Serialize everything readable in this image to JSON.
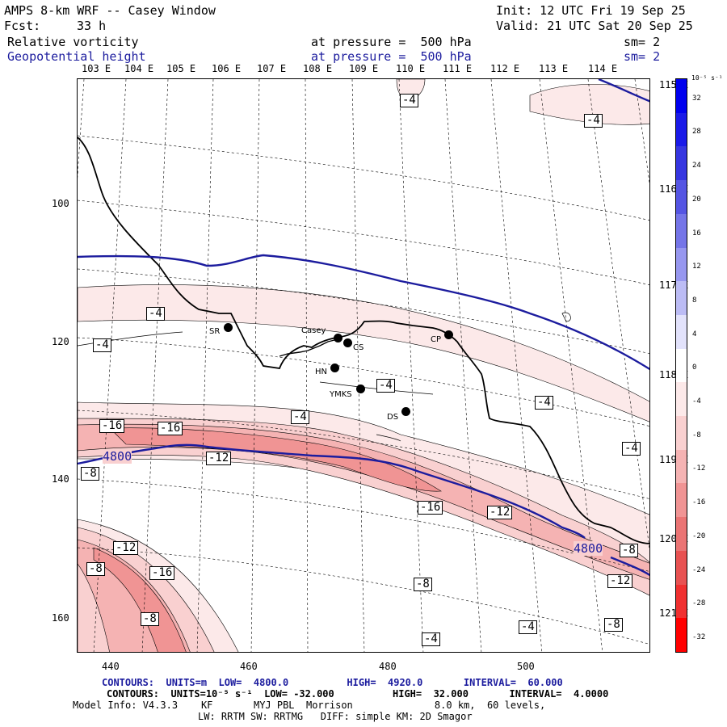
{
  "header": {
    "title": "AMPS 8-km WRF -- Casey Window",
    "init": "Init: 12 UTC Fri 19 Sep 25",
    "fcst_label": "Fcst:",
    "fcst_value": "33 h",
    "valid": "Valid: 21 UTC Sat 20 Sep 25",
    "field1": "Relative vorticity",
    "field1_level": "at pressure =  500 hPa",
    "field1_sm": "sm= 2",
    "field2": "Geopotential height",
    "field2_level": "at pressure =  500 hPa",
    "field2_sm": "sm= 2"
  },
  "map": {
    "lon_labels_top": [
      "103 E",
      "104 E",
      "105 E",
      "106 E",
      "107 E",
      "108 E",
      "109 E",
      "110 E",
      "111 E",
      "112 E",
      "113 E",
      "114 E"
    ],
    "lon_labels_right": [
      "115 E",
      "116 E",
      "117 E",
      "118 E",
      "119 E",
      "120 E",
      "121 E"
    ],
    "y_ticks": [
      "100",
      "120",
      "140",
      "160"
    ],
    "x_ticks": [
      "440",
      "460",
      "480",
      "500"
    ],
    "stations": [
      {
        "name": "SR"
      },
      {
        "name": "Casey"
      },
      {
        "name": "CS"
      },
      {
        "name": "HN"
      },
      {
        "name": "YMKS"
      },
      {
        "name": "DS"
      },
      {
        "name": "CP"
      }
    ],
    "vort_labels": [
      "-4",
      "-4",
      "-4",
      "-4",
      "-4",
      "-4",
      "-4",
      "-4",
      "-16",
      "-16",
      "-12",
      "-8",
      "-16",
      "-12",
      "-12",
      "-8",
      "-16",
      "-8",
      "-8",
      "-4",
      "-4",
      "-8",
      "-12",
      "-8"
    ],
    "height_labels": [
      "4800",
      "4800"
    ]
  },
  "colorbar": {
    "unit": "10⁻⁵ s⁻¹",
    "ticks": [
      "32",
      "28",
      "24",
      "20",
      "16",
      "12",
      "8",
      "4",
      "0",
      "-4",
      "-8",
      "-12",
      "-16",
      "-20",
      "-24",
      "-28",
      "-32"
    ],
    "colors": [
      "#0000ee",
      "#1a1ae8",
      "#3636e0",
      "#5555e3",
      "#7575e8",
      "#9797ef",
      "#bcbcf5",
      "#e2e2fb",
      "#ffffff",
      "#fce9e9",
      "#f9d0d0",
      "#f5b3b3",
      "#f09494",
      "#ea7474",
      "#e85252",
      "#f03030",
      "#ff0000"
    ]
  },
  "footer": {
    "line1": "CONTOURS:  UNITS=m  LOW=  4800.0          HIGH=  4920.0       INTERVAL=  60.000",
    "line2": "CONTOURS:  UNITS=10⁻⁵ s⁻¹  LOW= -32.000          HIGH=  32.000       INTERVAL=  4.0000",
    "line3": "Model Info: V4.3.3    KF       MYJ PBL  Morrison              8.0 km,  60 levels,",
    "line4": "LW: RRTM SW: RRTMG   DIFF: simple KM: 2D Smagor"
  }
}
